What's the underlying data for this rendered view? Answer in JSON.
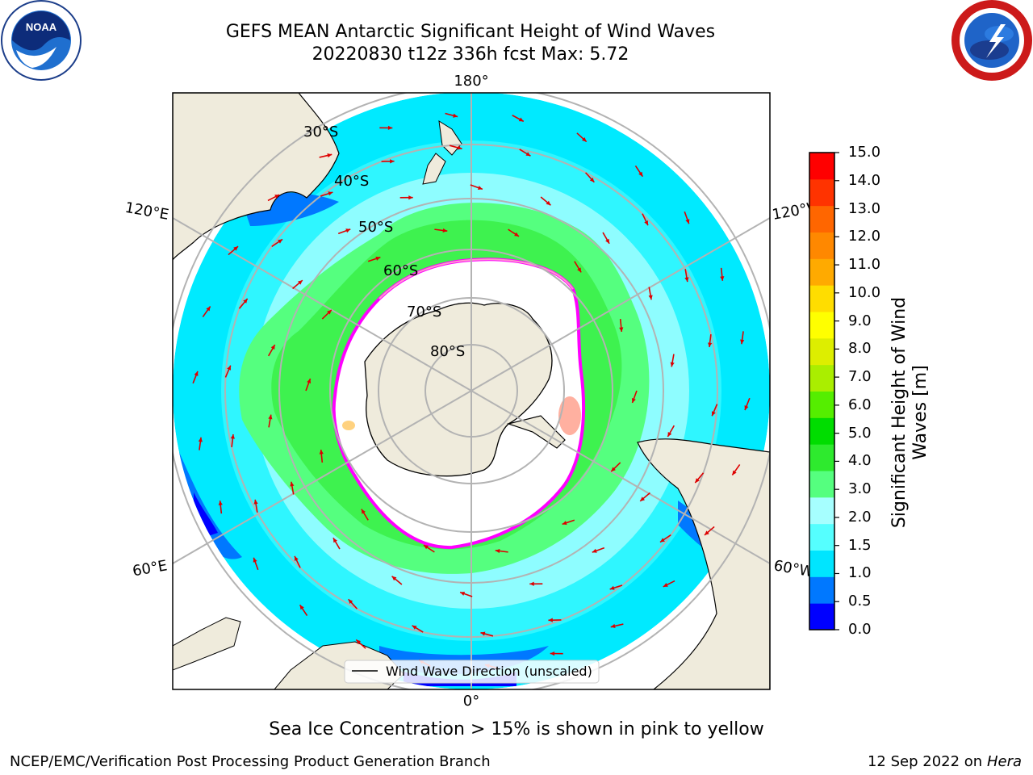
{
  "header": {
    "title_line1": "GEFS MEAN Antarctic Significant Height of Wind Waves",
    "title_line2": "20220830 t12z 336h fcst   Max: 5.72"
  },
  "logos": {
    "left": {
      "icon": "noaa-logo-icon",
      "text": "NOAA"
    },
    "right": {
      "icon": "national-weather-service-logo-icon",
      "text": "NATIONAL WEATHER SERVICE"
    }
  },
  "map": {
    "projection": "south-polar-stereographic",
    "longitude_labels": {
      "top": "180°",
      "bottom": "0°",
      "left_upper": "120°E",
      "left_lower": "60°E",
      "right_upper": "120°W",
      "right_lower": "60°W"
    },
    "latitude_labels": [
      "30°S",
      "40°S",
      "50°S",
      "60°S",
      "70°S",
      "80°S"
    ],
    "legend_label": "Wind Wave Direction (unscaled)",
    "land_color": "#efebdc",
    "ice_edge_colors": [
      "#ff00ff",
      "#ff99cc",
      "#ffd27f"
    ]
  },
  "colorbar": {
    "title": "Significant Height of Wind Waves [m]",
    "ticks": [
      "15.0",
      "14.0",
      "13.0",
      "12.0",
      "11.0",
      "10.0",
      "9.0",
      "8.0",
      "7.0",
      "6.0",
      "5.0",
      "4.0",
      "3.0",
      "2.0",
      "1.5",
      "1.0",
      "0.5",
      "0.0"
    ],
    "colors": [
      "#0000ff",
      "#0078ff",
      "#00e5ff",
      "#55ffff",
      "#a6ffff",
      "#55ff7f",
      "#2eea2e",
      "#00dd00",
      "#55ee00",
      "#aaee00",
      "#ddee00",
      "#ffff00",
      "#ffdd00",
      "#ffaa00",
      "#ff8800",
      "#ff6600",
      "#ff3300",
      "#ff0000"
    ]
  },
  "footer": {
    "note": "Sea Ice Concentration > 15% is shown in pink to yellow",
    "credit": "NCEP/EMC/Verification Post Processing Product Generation Branch",
    "date": "12 Sep 2022",
    "date_on": "on",
    "host": "Hera"
  }
}
